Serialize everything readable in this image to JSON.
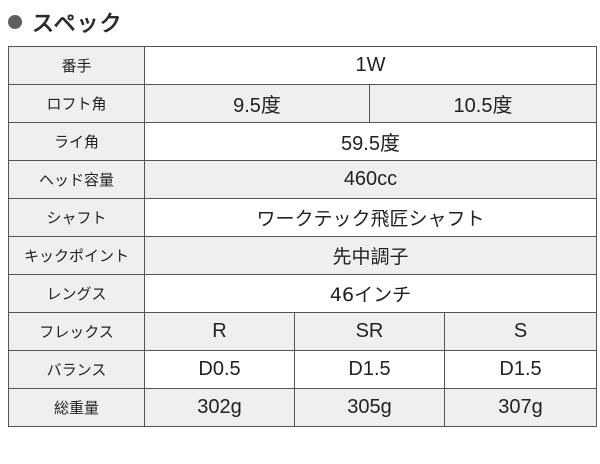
{
  "section": {
    "title": "スペック"
  },
  "rows": [
    {
      "label": "番手",
      "values": [
        "1W"
      ]
    },
    {
      "label": "ロフト角",
      "values": [
        "9.5度",
        "10.5度"
      ]
    },
    {
      "label": "ライ角",
      "values": [
        "59.5度"
      ]
    },
    {
      "label": "ヘッド容量",
      "values": [
        "460cc"
      ]
    },
    {
      "label": "シャフト",
      "values": [
        "ワークテック飛匠シャフト"
      ]
    },
    {
      "label": "キックポイント",
      "values": [
        "先中調子"
      ]
    },
    {
      "label": "レングス",
      "values": [
        "46インチ"
      ]
    },
    {
      "label": "フレックス",
      "values": [
        "R",
        "SR",
        "S"
      ]
    },
    {
      "label": "バランス",
      "values": [
        "D0.5",
        "D1.5",
        "D1.5"
      ]
    },
    {
      "label": "総重量",
      "values": [
        "302g",
        "305g",
        "307g"
      ]
    }
  ]
}
